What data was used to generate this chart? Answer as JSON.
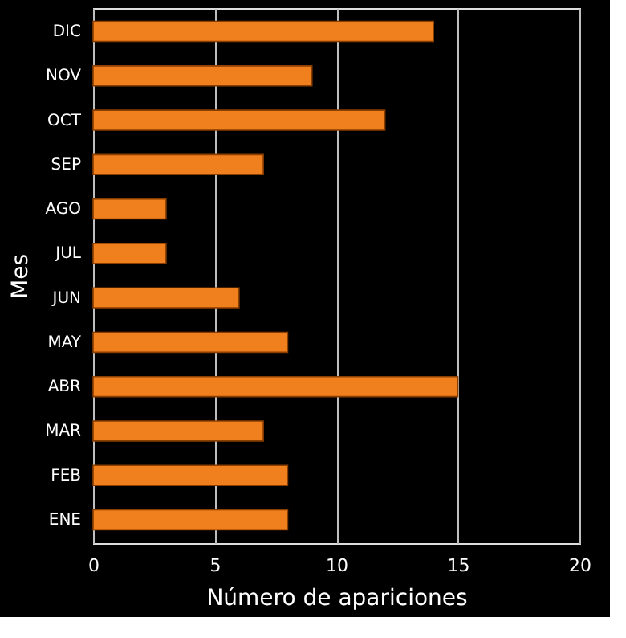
{
  "chart_data": {
    "type": "bar",
    "orientation": "horizontal",
    "xlabel": "Número de apariciones",
    "ylabel": "Mes",
    "categories": [
      "DIC",
      "NOV",
      "OCT",
      "SEP",
      "AGO",
      "JUL",
      "JUN",
      "MAY",
      "ABR",
      "MAR",
      "FEB",
      "ENE"
    ],
    "values": [
      14,
      9,
      12,
      7,
      3,
      3,
      6,
      8,
      15,
      7,
      8,
      8
    ],
    "color": "#f07f1e",
    "xlim": [
      0,
      20
    ],
    "xticks": [
      0,
      5,
      10,
      15,
      20
    ],
    "grid": "x"
  }
}
